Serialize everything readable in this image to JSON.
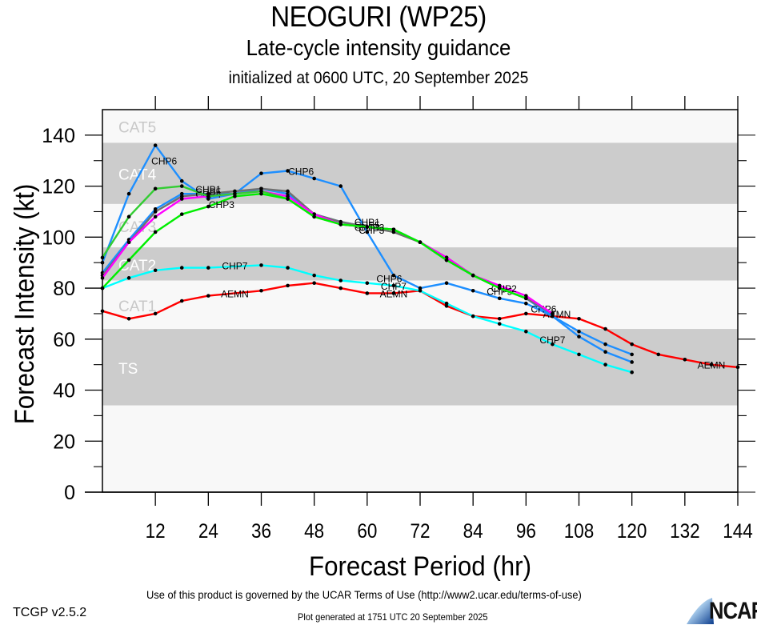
{
  "header": {
    "title": "NEOGURI (WP25)",
    "subtitle": "Late-cycle intensity guidance",
    "init": "initialized at 0600 UTC, 20 September 2025"
  },
  "footer": {
    "terms": "Use of this product is governed by the UCAR Terms of Use (http://www2.ucar.edu/terms-of-use)",
    "generated": "Plot generated at 1751 UTC   20 September 2025",
    "version": "TCGP v2.5.2",
    "logo": "NCAR"
  },
  "chart_data": {
    "type": "line",
    "title": "NEOGURI (WP25)",
    "xlabel": "Forecast Period (hr)",
    "ylabel": "Forecast Intensity (kt)",
    "xlim": [
      0,
      144
    ],
    "ylim": [
      0,
      150
    ],
    "xticks": [
      12,
      24,
      36,
      48,
      60,
      72,
      84,
      96,
      108,
      120,
      132,
      144
    ],
    "yticks": [
      0,
      20,
      40,
      60,
      80,
      100,
      120,
      140
    ],
    "yminor": [
      10,
      30,
      50,
      70,
      90,
      110,
      130
    ],
    "xminor": [
      6,
      18,
      30,
      42,
      54,
      66,
      78,
      90,
      102,
      114,
      126,
      138
    ],
    "bands": [
      {
        "label": "CAT5",
        "from": 137,
        "to": 150,
        "fill": "#f8f8f8",
        "text": "#c8c8c8"
      },
      {
        "label": "CAT4",
        "from": 113,
        "to": 137,
        "fill": "#cccccc",
        "text": "#ffffff"
      },
      {
        "label": "CAT3",
        "from": 96,
        "to": 113,
        "fill": "#f8f8f8",
        "text": "#c8c8c8"
      },
      {
        "label": "CAT2",
        "from": 83,
        "to": 96,
        "fill": "#cccccc",
        "text": "#ffffff"
      },
      {
        "label": "CAT1",
        "from": 64,
        "to": 83,
        "fill": "#f8f8f8",
        "text": "#c8c8c8"
      },
      {
        "label": "TS",
        "from": 34,
        "to": 64,
        "fill": "#cccccc",
        "text": "#ffffff"
      },
      {
        "label": "",
        "from": 0,
        "to": 34,
        "fill": "#f8f8f8",
        "text": "#c8c8c8"
      }
    ],
    "series": [
      {
        "name": "AEMN",
        "color": "#ff0000",
        "x": [
          0,
          6,
          12,
          18,
          24,
          36,
          42,
          48,
          54,
          60,
          66,
          72,
          78,
          84,
          90,
          96,
          102,
          108,
          114,
          120,
          126,
          132,
          138,
          144
        ],
        "y": [
          71,
          68,
          70,
          75,
          77,
          79,
          81,
          82,
          80,
          78,
          78,
          79,
          73,
          69,
          68,
          70,
          69,
          68,
          64,
          58,
          54,
          52,
          50,
          49
        ],
        "labels": [
          {
            "x": 30,
            "y": 78
          },
          {
            "x": 66,
            "y": 78
          },
          {
            "x": 103,
            "y": 70
          },
          {
            "x": 138,
            "y": 50
          }
        ]
      },
      {
        "name": "CHP7",
        "color": "#00ffff",
        "x": [
          0,
          6,
          12,
          18,
          24,
          36,
          42,
          48,
          54,
          60,
          66,
          72,
          78,
          84,
          90,
          96,
          102,
          108,
          114,
          120
        ],
        "y": [
          80,
          84,
          87,
          88,
          88,
          89,
          88,
          85,
          83,
          82,
          81,
          79,
          74,
          69,
          66,
          63,
          58,
          54,
          50,
          47
        ],
        "labels": [
          {
            "x": 30,
            "y": 89
          },
          {
            "x": 66,
            "y": 81
          },
          {
            "x": 102,
            "y": 60
          }
        ]
      },
      {
        "name": "CHP6",
        "color": "#1e8fff",
        "x": [
          0,
          6,
          12,
          18,
          24,
          30,
          36,
          42,
          48,
          54,
          60,
          66,
          72,
          78,
          84,
          90,
          96,
          102,
          108,
          114,
          120
        ],
        "y": [
          90,
          117,
          136,
          122,
          115,
          117,
          125,
          126,
          123,
          120,
          102,
          85,
          80,
          82,
          79,
          76,
          74,
          69,
          61,
          55,
          51
        ],
        "labels": [
          {
            "x": 14,
            "y": 130
          },
          {
            "x": 45,
            "y": 126
          },
          {
            "x": 65,
            "y": 84
          },
          {
            "x": 100,
            "y": 72
          }
        ]
      },
      {
        "name": "CHP5",
        "color": "#1e8fff",
        "x": [
          0,
          6,
          12,
          18,
          24,
          30,
          36,
          42,
          48,
          54,
          60,
          66,
          72,
          78,
          84,
          90,
          96,
          102,
          108,
          114,
          120
        ],
        "y": [
          86,
          99,
          111,
          117,
          117,
          117,
          119,
          117,
          109,
          106,
          104,
          103,
          98,
          91,
          85,
          80,
          76,
          69,
          63,
          58,
          54
        ],
        "labels": [
          {
            "x": 24,
            "y": 118
          },
          {
            "x": 60,
            "y": 105
          },
          {
            "x": 90,
            "y": 79
          }
        ]
      },
      {
        "name": "CHP4",
        "color": "#707070",
        "x": [
          0,
          6,
          12,
          18,
          24,
          30,
          36,
          42,
          48,
          54,
          60,
          66,
          72,
          78,
          84,
          90,
          96,
          102
        ],
        "y": [
          85,
          98,
          110,
          116,
          117,
          118,
          119,
          118,
          109,
          106,
          104,
          102,
          98,
          92,
          85,
          80,
          76,
          70
        ],
        "labels": [
          {
            "x": 24,
            "y": 117
          },
          {
            "x": 60,
            "y": 104
          }
        ]
      },
      {
        "name": "CHP2",
        "color": "#ff00ff",
        "x": [
          0,
          6,
          12,
          18,
          24,
          30,
          36,
          42,
          48,
          54,
          60,
          66,
          72,
          78,
          84,
          90,
          96,
          102
        ],
        "y": [
          84,
          98,
          108,
          115,
          116,
          117,
          118,
          116,
          109,
          105,
          104,
          103,
          98,
          92,
          85,
          81,
          77,
          70
        ],
        "labels": [
          {
            "x": 61,
            "y": 104
          },
          {
            "x": 91,
            "y": 80
          }
        ]
      },
      {
        "name": "CHP1",
        "color": "#32cd32",
        "x": [
          0,
          6,
          12,
          18,
          24,
          30,
          36,
          42,
          48,
          54,
          60,
          66,
          72,
          78,
          84,
          90,
          96
        ],
        "y": [
          92,
          108,
          119,
          120,
          116,
          117,
          118,
          115,
          108,
          105,
          104,
          103,
          98,
          91,
          85,
          80,
          76
        ],
        "labels": [
          {
            "x": 24,
            "y": 119
          },
          {
            "x": 60,
            "y": 106
          }
        ]
      },
      {
        "name": "CHP3",
        "color": "#00ee00",
        "x": [
          0,
          6,
          12,
          18,
          24,
          30,
          36,
          42,
          48,
          54,
          60,
          66,
          72,
          78,
          84,
          90,
          96
        ],
        "y": [
          80,
          91,
          102,
          109,
          112,
          116,
          117,
          115,
          108,
          105,
          104,
          103,
          98,
          91,
          85,
          80,
          76
        ],
        "labels": [
          {
            "x": 27,
            "y": 113
          },
          {
            "x": 61,
            "y": 103
          }
        ]
      }
    ]
  }
}
